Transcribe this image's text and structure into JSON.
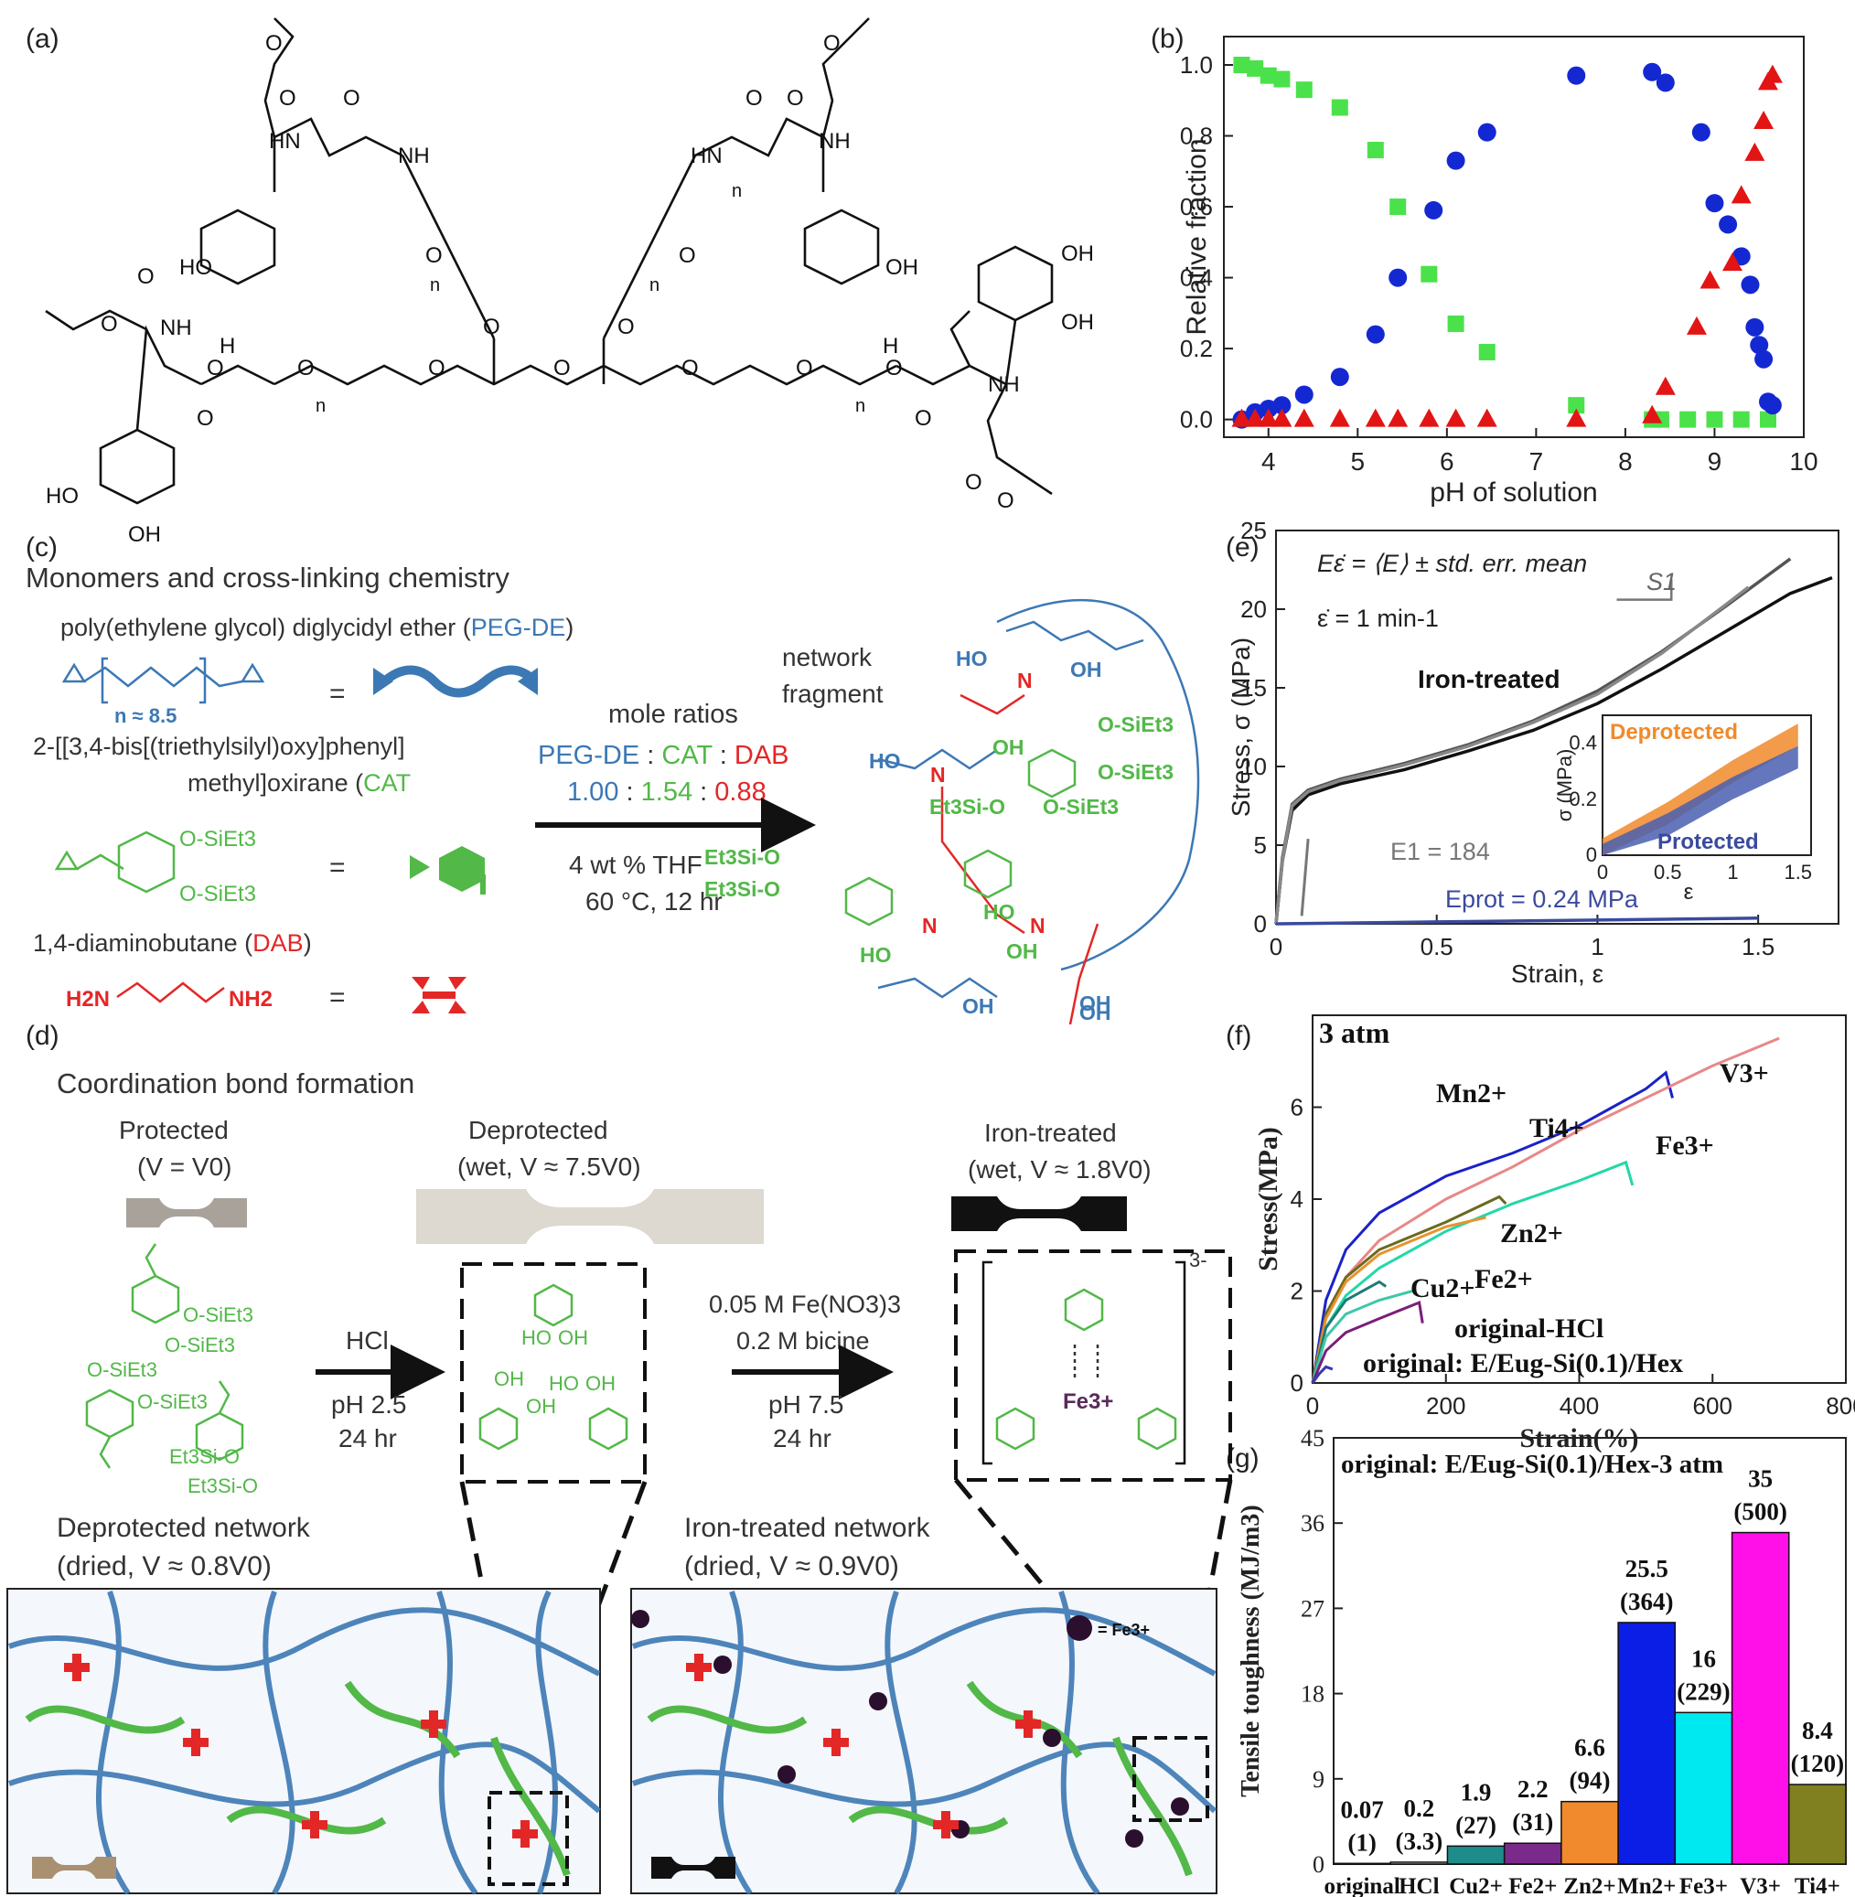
{
  "panel_labels": {
    "a": "(a)",
    "b": "(b)",
    "c": "(c)",
    "d": "(d)",
    "e": "(e)",
    "f": "(f)",
    "g": "(g)"
  },
  "panel_a": {
    "atoms": [
      "HO",
      "OH",
      "OH",
      "HO",
      "OH",
      "OH",
      "HN",
      "NH",
      "NH",
      "HN",
      "NH",
      "NH",
      "O",
      "O",
      "O",
      "O",
      "O",
      "O",
      "O",
      "O",
      "O",
      "O",
      "O",
      "O",
      "O",
      "O",
      "O",
      "O",
      "O",
      "O",
      "O",
      "O",
      "O",
      "O",
      "O",
      "O",
      "O",
      "O",
      "O",
      "O",
      "O",
      "O",
      "O",
      "O",
      "H",
      "H",
      "n",
      "n",
      "n",
      "n",
      "n"
    ]
  },
  "panel_c": {
    "heading": "Monomers and cross-linking chemistry",
    "peg_name_prefix": "poly(ethylene glycol) diglycidyl ether (",
    "peg_abbr": "PEG-DE",
    "peg_name_suffix": ")",
    "peg_n": "n ≈ 8.5",
    "cat_name_line1": "2-[[3,4-bis[(triethylsilyl)oxy]phenyl]",
    "cat_name_line2_prefix": "methyl]oxirane (",
    "cat_abbr": "CAT",
    "cat_name_line2_suffix": ")",
    "cat_groups": [
      "O-SiEt3",
      "O-SiEt3"
    ],
    "dab_name_prefix": "1,4-diaminobutane (",
    "dab_abbr": "DAB",
    "dab_name_suffix": ")",
    "dab_groups": [
      "H2N",
      "NH2"
    ],
    "equals": "=",
    "mole_ratios_title": "mole ratios",
    "ratio_labels": [
      "PEG-DE",
      "CAT",
      "DAB"
    ],
    "ratio_values": [
      "1.00",
      "1.54",
      "0.88"
    ],
    "ratio_sep": ":",
    "conditions": [
      "4 wt % THF",
      "60 °C, 12 hr"
    ],
    "fragment_label": [
      "network",
      "fragment"
    ],
    "fragment_atoms": [
      "HO",
      "OH",
      "HO",
      "OH",
      "O-SiEt3",
      "O-SiEt3",
      "Et3Si-O",
      "O-SiEt3",
      "Et3Si-O",
      "Et3Si-O",
      "HO",
      "OH",
      "HO",
      "OH",
      "OH",
      "OH",
      "N",
      "N",
      "N",
      "N"
    ]
  },
  "panel_d": {
    "heading": "Coordination bond formation",
    "states": [
      {
        "name": "Protected",
        "cond": "(V = V0)"
      },
      {
        "name": "Deprotected",
        "cond": "(wet, V ≈ 7.5V0)"
      },
      {
        "name": "Iron-treated",
        "cond": "(wet, V ≈ 1.8V0)"
      }
    ],
    "step1": {
      "reagent": "HCl",
      "cond": [
        "pH 2.5",
        "24 hr"
      ]
    },
    "step2": {
      "reagent": [
        "0.05 M Fe(NO3)3",
        "0.2 M bicine"
      ],
      "cond": [
        "pH 7.5",
        "24 hr"
      ]
    },
    "protected_groups": [
      "O-SiEt3",
      "O-SiEt3",
      "O-SiEt3",
      "O-SiEt3",
      "Et3Si-O",
      "Et3Si-O"
    ],
    "deprotected_groups": [
      "HO",
      "OH",
      "OH",
      "OH",
      "HO",
      "OH"
    ],
    "fe_center": "Fe3+",
    "charge": "3-",
    "networks": [
      {
        "name": "Deprotected network",
        "cond": "(dried, V ≈ 0.8V0)"
      },
      {
        "name": "Iron-treated network",
        "cond": "(dried, V ≈ 0.9V0)"
      }
    ],
    "fe_legend": "= Fe3+"
  },
  "colors": {
    "peg": "#3c78b4",
    "cat": "#52b848",
    "dab": "#e32727",
    "fe": "#2b0f2e"
  },
  "chart_data": [
    {
      "id": "b",
      "type": "scatter",
      "xlabel": "pH of solution",
      "ylabel": "Relative fraction",
      "xlim": [
        3.5,
        10
      ],
      "ylim": [
        -0.05,
        1.08
      ],
      "xticks": [
        4,
        5,
        6,
        7,
        8,
        9,
        10
      ],
      "yticks": [
        0.0,
        0.2,
        0.4,
        0.6,
        0.8,
        1.0
      ],
      "series": [
        {
          "marker": "square",
          "color": "#4be14b",
          "points": [
            [
              3.7,
              1.0
            ],
            [
              3.85,
              0.99
            ],
            [
              4.0,
              0.97
            ],
            [
              4.15,
              0.96
            ],
            [
              4.4,
              0.93
            ],
            [
              4.8,
              0.88
            ],
            [
              5.2,
              0.76
            ],
            [
              5.45,
              0.6
            ],
            [
              5.8,
              0.41
            ],
            [
              6.1,
              0.27
            ],
            [
              6.45,
              0.19
            ],
            [
              7.45,
              0.04
            ],
            [
              8.3,
              0.0
            ],
            [
              8.4,
              0.0
            ],
            [
              8.7,
              0.0
            ],
            [
              9.0,
              0.0
            ],
            [
              9.3,
              0.0
            ],
            [
              9.6,
              0.0
            ]
          ]
        },
        {
          "marker": "circle",
          "color": "#1428d2",
          "points": [
            [
              3.7,
              0.0
            ],
            [
              3.85,
              0.02
            ],
            [
              4.0,
              0.03
            ],
            [
              4.15,
              0.04
            ],
            [
              4.4,
              0.07
            ],
            [
              4.8,
              0.12
            ],
            [
              5.2,
              0.24
            ],
            [
              5.45,
              0.4
            ],
            [
              5.85,
              0.59
            ],
            [
              6.1,
              0.73
            ],
            [
              6.45,
              0.81
            ],
            [
              7.45,
              0.97
            ],
            [
              8.3,
              0.98
            ],
            [
              8.45,
              0.95
            ],
            [
              8.85,
              0.81
            ],
            [
              9.0,
              0.61
            ],
            [
              9.15,
              0.55
            ],
            [
              9.3,
              0.46
            ],
            [
              9.4,
              0.38
            ],
            [
              9.45,
              0.26
            ],
            [
              9.5,
              0.21
            ],
            [
              9.55,
              0.17
            ],
            [
              9.6,
              0.05
            ],
            [
              9.65,
              0.04
            ]
          ]
        },
        {
          "marker": "triangle",
          "color": "#e31414",
          "points": [
            [
              3.7,
              0.0
            ],
            [
              3.85,
              0.0
            ],
            [
              4.0,
              0.0
            ],
            [
              4.15,
              0.0
            ],
            [
              4.4,
              0.0
            ],
            [
              4.8,
              0.0
            ],
            [
              5.2,
              0.0
            ],
            [
              5.45,
              0.0
            ],
            [
              5.8,
              0.0
            ],
            [
              6.1,
              0.0
            ],
            [
              6.45,
              0.0
            ],
            [
              7.45,
              0.0
            ],
            [
              8.3,
              0.01
            ],
            [
              8.45,
              0.09
            ],
            [
              8.8,
              0.26
            ],
            [
              8.95,
              0.39
            ],
            [
              9.2,
              0.44
            ],
            [
              9.3,
              0.63
            ],
            [
              9.45,
              0.75
            ],
            [
              9.55,
              0.84
            ],
            [
              9.6,
              0.95
            ],
            [
              9.65,
              0.97
            ]
          ]
        }
      ]
    },
    {
      "id": "e",
      "type": "line",
      "xlabel": "Strain, ε",
      "ylabel": "Stress, σ (MPa)",
      "xlim": [
        0,
        1.75
      ],
      "ylim": [
        0,
        25
      ],
      "xticks": [
        0,
        0.5,
        1,
        1.5
      ],
      "yticks": [
        0,
        5,
        10,
        15,
        20,
        25
      ],
      "annotations": {
        "formula": "Eε̇ = ⟨E⟩ ± std. err. mean",
        "rate": "ε̇ = 1 min-1",
        "slope": "S1",
        "iron": "Iron-treated",
        "E1": "E1 = 184",
        "Eprot": "Eprot = 0.24 MPa"
      },
      "series": [
        {
          "color": "#111111",
          "points": [
            [
              0,
              0
            ],
            [
              0.02,
              4
            ],
            [
              0.05,
              7.2
            ],
            [
              0.1,
              8.2
            ],
            [
              0.2,
              8.9
            ],
            [
              0.4,
              9.8
            ],
            [
              0.6,
              11.0
            ],
            [
              0.8,
              12.3
            ],
            [
              1.0,
              14.0
            ],
            [
              1.2,
              16.2
            ],
            [
              1.4,
              18.6
            ],
            [
              1.6,
              21.0
            ],
            [
              1.73,
              22.0
            ]
          ]
        },
        {
          "color": "#555555",
          "points": [
            [
              0,
              0
            ],
            [
              0.02,
              4.2
            ],
            [
              0.05,
              7.6
            ],
            [
              0.1,
              8.5
            ],
            [
              0.2,
              9.2
            ],
            [
              0.4,
              10.2
            ],
            [
              0.6,
              11.4
            ],
            [
              0.8,
              12.9
            ],
            [
              1.0,
              14.8
            ],
            [
              1.2,
              17.3
            ],
            [
              1.4,
              20.2
            ],
            [
              1.6,
              23.2
            ]
          ]
        },
        {
          "color": "#888888",
          "points": [
            [
              0,
              0
            ],
            [
              0.02,
              4.0
            ],
            [
              0.05,
              7.5
            ],
            [
              0.1,
              8.4
            ],
            [
              0.2,
              9.1
            ],
            [
              0.4,
              10.1
            ],
            [
              0.6,
              11.3
            ],
            [
              0.8,
              12.8
            ],
            [
              1.0,
              14.6
            ],
            [
              1.2,
              17.2
            ],
            [
              1.4,
              20.3
            ],
            [
              1.47,
              21.4
            ]
          ]
        },
        {
          "color": "#3a4a9e",
          "points": [
            [
              0,
              0
            ],
            [
              0.5,
              0.12
            ],
            [
              1.0,
              0.24
            ],
            [
              1.5,
              0.36
            ]
          ]
        }
      ],
      "inset": {
        "xlabel": "ε",
        "ylabel": "σ (MPa)",
        "xlim": [
          0,
          1.6
        ],
        "ylim": [
          0,
          0.5
        ],
        "xticks": [
          0,
          0.5,
          1,
          1.5
        ],
        "yticks": [
          0,
          0.2,
          0.4
        ],
        "labels": [
          "Deprotected",
          "Protected"
        ],
        "series": [
          {
            "name": "Deprotected",
            "color": "#f08a2c",
            "points": [
              [
                0,
                0.02
              ],
              [
                0.5,
                0.15
              ],
              [
                1.0,
                0.3
              ],
              [
                1.5,
                0.43
              ]
            ]
          },
          {
            "name": "Protected",
            "color": "#4a5fb0",
            "points": [
              [
                0,
                0.0
              ],
              [
                0.5,
                0.11
              ],
              [
                1.0,
                0.24
              ],
              [
                1.5,
                0.35
              ]
            ]
          }
        ]
      }
    },
    {
      "id": "f",
      "type": "line",
      "xlabel": "Strain(%)",
      "ylabel": "Stress(MPa)",
      "title": "3 atm",
      "xlim": [
        0,
        800
      ],
      "ylim": [
        0,
        8
      ],
      "xticks": [
        0,
        200,
        400,
        600,
        800
      ],
      "yticks": [
        0,
        2,
        4,
        6
      ],
      "series": [
        {
          "name": "Mn2+",
          "color": "#1a22c8",
          "points": [
            [
              0,
              0
            ],
            [
              20,
              1.8
            ],
            [
              50,
              2.9
            ],
            [
              100,
              3.7
            ],
            [
              200,
              4.5
            ],
            [
              300,
              5.0
            ],
            [
              400,
              5.6
            ],
            [
              500,
              6.4
            ],
            [
              530,
              6.75
            ],
            [
              540,
              6.2
            ]
          ]
        },
        {
          "name": "V3+",
          "color": "#e88888",
          "points": [
            [
              0,
              0
            ],
            [
              20,
              1.5
            ],
            [
              50,
              2.3
            ],
            [
              100,
              3.1
            ],
            [
              200,
              4.0
            ],
            [
              300,
              4.7
            ],
            [
              400,
              5.5
            ],
            [
              500,
              6.2
            ],
            [
              600,
              6.9
            ],
            [
              700,
              7.5
            ]
          ]
        },
        {
          "name": "Fe3+",
          "color": "#22d8a8",
          "points": [
            [
              0,
              0
            ],
            [
              20,
              1.2
            ],
            [
              50,
              1.9
            ],
            [
              100,
              2.5
            ],
            [
              200,
              3.3
            ],
            [
              300,
              3.9
            ],
            [
              400,
              4.4
            ],
            [
              470,
              4.8
            ],
            [
              480,
              4.3
            ]
          ]
        },
        {
          "name": "Ti4+",
          "color": "#6a6a20",
          "points": [
            [
              0,
              0
            ],
            [
              20,
              1.5
            ],
            [
              50,
              2.3
            ],
            [
              100,
              2.9
            ],
            [
              200,
              3.5
            ],
            [
              280,
              4.05
            ],
            [
              290,
              3.9
            ]
          ]
        },
        {
          "name": "Zn2+",
          "color": "#e8932e",
          "points": [
            [
              0,
              0
            ],
            [
              20,
              1.4
            ],
            [
              50,
              2.2
            ],
            [
              100,
              2.8
            ],
            [
              200,
              3.4
            ],
            [
              260,
              3.6
            ]
          ]
        },
        {
          "name": "Cu2+",
          "color": "#1e7a78",
          "points": [
            [
              0,
              0
            ],
            [
              20,
              1.2
            ],
            [
              50,
              1.8
            ],
            [
              100,
              2.2
            ],
            [
              110,
              2.1
            ]
          ]
        },
        {
          "name": "Fe2+",
          "color": "#3ec8a8",
          "points": [
            [
              0,
              0
            ],
            [
              20,
              1.0
            ],
            [
              50,
              1.5
            ],
            [
              100,
              1.8
            ],
            [
              150,
              2.0
            ]
          ]
        },
        {
          "name": "original-HCl",
          "color": "#7a1e7a",
          "points": [
            [
              0,
              0
            ],
            [
              20,
              0.7
            ],
            [
              50,
              1.1
            ],
            [
              100,
              1.4
            ],
            [
              160,
              1.75
            ],
            [
              165,
              1.3
            ]
          ]
        },
        {
          "name": "original: E/Eug-Si(0.1)/Hex",
          "color": "#3a3ab0",
          "points": [
            [
              0,
              0
            ],
            [
              10,
              0.2
            ],
            [
              20,
              0.35
            ],
            [
              30,
              0.3
            ]
          ]
        }
      ]
    },
    {
      "id": "g",
      "type": "bar",
      "title": "original: E/Eug-Si(0.1)/Hex-3 atm",
      "ylabel": "Tensile toughness (MJ/m3)",
      "ylim": [
        0,
        45
      ],
      "yticks": [
        0,
        9,
        18,
        27,
        36,
        45
      ],
      "categories": [
        "original",
        "HCl",
        "Cu2+",
        "Fe2+",
        "Zn2+",
        "Mn2+",
        "Fe3+",
        "V3+",
        "Ti4+"
      ],
      "values": [
        0.07,
        0.2,
        1.9,
        2.2,
        6.6,
        25.5,
        16,
        35,
        8.4
      ],
      "value_labels": [
        "0.07",
        "0.2",
        "1.9",
        "2.2",
        "6.6",
        "25.5",
        "16",
        "35",
        "8.4"
      ],
      "ratio_labels": [
        "(1)",
        "(3.3)",
        "(27)",
        "(31)",
        "(94)",
        "(364)",
        "(229)",
        "(500)",
        "(120)"
      ],
      "colors": [
        "#e8e8e8",
        "#d9d9d9",
        "#1f8c8c",
        "#7a2a8a",
        "#f08a2c",
        "#0b1ee6",
        "#00e8f0",
        "#ff10e8",
        "#808020"
      ]
    }
  ]
}
